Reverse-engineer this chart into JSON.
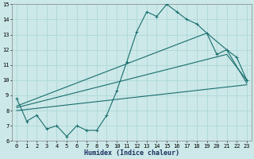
{
  "xlabel": "Humidex (Indice chaleur)",
  "xlim": [
    0,
    23
  ],
  "ylim": [
    6,
    15
  ],
  "xticks": [
    0,
    1,
    2,
    3,
    4,
    5,
    6,
    7,
    8,
    9,
    10,
    11,
    12,
    13,
    14,
    15,
    16,
    17,
    18,
    19,
    20,
    21,
    22,
    23
  ],
  "yticks": [
    6,
    7,
    8,
    9,
    10,
    11,
    12,
    13,
    14,
    15
  ],
  "bg_color": "#cce8e8",
  "grid_color": "#aed8d8",
  "line_color": "#1a6e6e",
  "line1_x": [
    0,
    1,
    2,
    3,
    4,
    5,
    6,
    7,
    8,
    9,
    10,
    11,
    12,
    13,
    14,
    15,
    16,
    17,
    18,
    19,
    20,
    21,
    22,
    23
  ],
  "line1_y": [
    8.8,
    7.3,
    7.7,
    6.8,
    7.0,
    6.3,
    7.0,
    6.7,
    6.7,
    7.7,
    9.3,
    11.2,
    13.2,
    14.5,
    14.2,
    15.0,
    14.5,
    14.0,
    13.7,
    13.1,
    11.7,
    12.0,
    11.5,
    10.0
  ],
  "line2_x": [
    0,
    23
  ],
  "line2_y": [
    8.0,
    9.7
  ],
  "line3_x": [
    0,
    21,
    23
  ],
  "line3_y": [
    8.2,
    11.7,
    10.0
  ],
  "line4_x": [
    0,
    19,
    21,
    23
  ],
  "line4_y": [
    8.3,
    13.1,
    12.0,
    9.8
  ],
  "xlabel_fontsize": 6,
  "tick_fontsize": 5
}
